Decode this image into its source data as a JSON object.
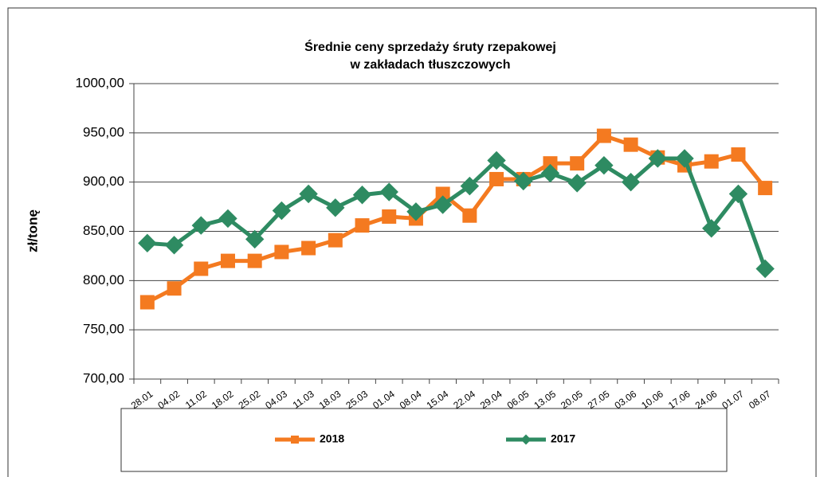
{
  "chart_data": {
    "type": "line",
    "title": "Średnie ceny sprzedaży śruty rzepakowej",
    "subtitle": "w zakładach tłuszczowych",
    "y_label": "zł/tonę",
    "categories": [
      "28.01",
      "04.02",
      "11.02",
      "18.02",
      "25.02",
      "04.03",
      "11.03",
      "18.03",
      "25.03",
      "01.04",
      "08.04",
      "15.04",
      "22.04",
      "29.04",
      "06.05",
      "13.05",
      "20.05",
      "27.05",
      "03.06",
      "10.06",
      "17.06",
      "24.06",
      "01.07",
      "08.07"
    ],
    "series": [
      {
        "name": "2018",
        "color": "#f47a20",
        "marker": "square",
        "values": [
          778,
          792,
          812,
          820,
          820,
          829,
          833,
          841,
          856,
          865,
          863,
          888,
          866,
          903,
          903,
          919,
          919,
          947,
          938,
          925,
          917,
          921,
          928,
          894
        ]
      },
      {
        "name": "2017",
        "color": "#2e8b62",
        "marker": "diamond",
        "values": [
          838,
          836,
          856,
          863,
          842,
          871,
          888,
          874,
          887,
          890,
          870,
          877,
          896,
          922,
          901,
          909,
          899,
          917,
          900,
          924,
          924,
          853,
          888,
          812
        ]
      }
    ],
    "ylim": [
      700,
      1000
    ],
    "yticks": [
      {
        "value": 700,
        "label": "700,00"
      },
      {
        "value": 750,
        "label": "750,00"
      },
      {
        "value": 800,
        "label": "800,00"
      },
      {
        "value": 850,
        "label": "850,00"
      },
      {
        "value": 900,
        "label": "900,00"
      },
      {
        "value": 950,
        "label": "950,00"
      },
      {
        "value": 1000,
        "label": "1000,00"
      }
    ],
    "grid": true,
    "legend": "bottom"
  }
}
